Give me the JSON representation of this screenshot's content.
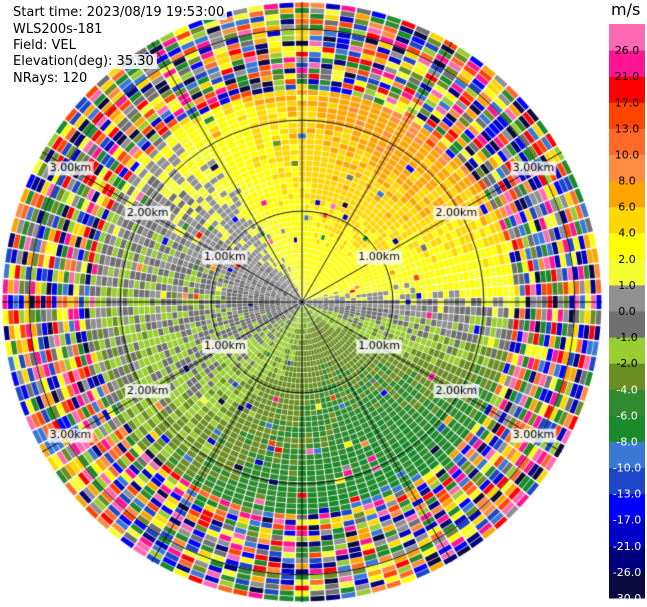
{
  "header": {
    "start_time": "Start time: 2023/08/19 19:53:00",
    "instrument": "WLS200s-181",
    "field": "Field: VEL",
    "elevation": "Elevation(deg): 35.30",
    "nrays": "NRays: 120"
  },
  "chart_data": {
    "type": "ppi_radar",
    "field": "VEL",
    "unit": "m/s",
    "range_rings_km": [
      1.0,
      2.0,
      3.0
    ],
    "range_ring_labels": [
      "1.00km",
      "2.00km",
      "3.00km"
    ],
    "max_range_km": 3.3,
    "azimuth_spokes_deg": [
      0,
      30,
      60,
      90,
      120,
      150,
      180,
      210,
      240,
      270,
      300,
      330
    ],
    "colorbar": {
      "title": "m/s",
      "levels": [
        -30.0,
        -26.0,
        -21.0,
        -17.0,
        -13.0,
        -10.0,
        -8.0,
        -6.0,
        -4.0,
        -2.0,
        -1.0,
        0.0,
        1.0,
        2.0,
        4.0,
        6.0,
        8.0,
        10.0,
        13.0,
        17.0,
        21.0,
        26.0
      ],
      "tick_labels": [
        "-30.0",
        "-26.0",
        "-21.0",
        "-17.0",
        "-13.0",
        "-10.0",
        "-8.0",
        "-6.0",
        "-4.0",
        "-2.0",
        "-1.0",
        "0.0",
        "1.0",
        "2.0",
        "4.0",
        "6.0",
        "8.0",
        "10.0",
        "13.0",
        "17.0",
        "21.0",
        "26.0"
      ],
      "colors": [
        "#0a0a40",
        "#00007f",
        "#0000c8",
        "#0000ff",
        "#1e46c8",
        "#3a78d6",
        "#1a8a2a",
        "#2e8b2e",
        "#6b8e23",
        "#9acd32",
        "#707070",
        "#909090",
        "#f5ff30",
        "#ffff00",
        "#ffd700",
        "#ffa500",
        "#ff8c40",
        "#ff6a2a",
        "#ff4500",
        "#ff0000",
        "#ff1493",
        "#ff69b4"
      ]
    },
    "velocity_pattern": {
      "description_note_free": true,
      "north_sector": "positive",
      "south_sector": "negative",
      "clean_radius_km": 2.3
    }
  }
}
